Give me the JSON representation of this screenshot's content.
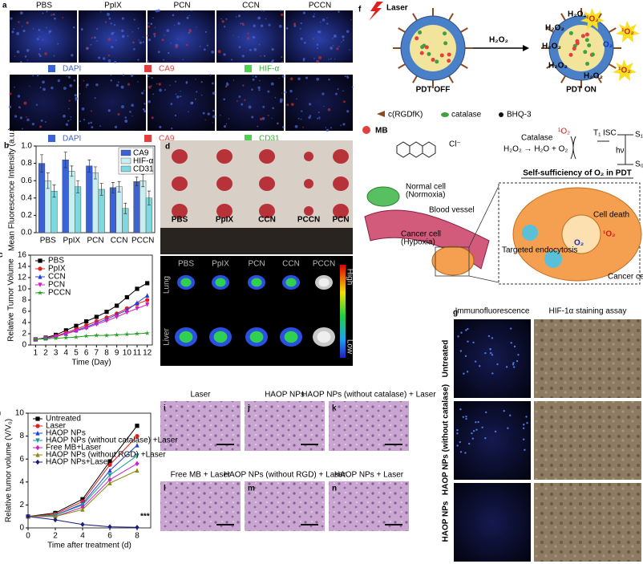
{
  "panels": {
    "a": {
      "label": "a",
      "columns": [
        "PBS",
        "PpIX",
        "PCN",
        "CCN",
        "PCCN"
      ],
      "legend_top": [
        "DAPI",
        "CA9",
        "HIF-α"
      ],
      "legend_bottom": [
        "DAPI",
        "CA9",
        "CD31"
      ]
    },
    "d": {
      "label": "d",
      "samples": [
        "PBS",
        "PpIX",
        "CCN",
        "PCCN",
        "PCN"
      ]
    },
    "e": {
      "label": "e",
      "columns": [
        "PBS",
        "PpIX",
        "PCN",
        "CCN",
        "PCCN"
      ],
      "rows": [
        "Lung",
        "Liver"
      ],
      "scale_high": "High",
      "scale_low": "Low"
    },
    "f": {
      "label": "f",
      "laser": "Laser",
      "reactant": "H₂O₂",
      "state_off": "PDT OFF",
      "state_on": "PDT ON",
      "singlet_oxygen": "¹O₂",
      "oxygen": "O₂",
      "legend": [
        "c(RGDfK)",
        "catalase",
        "BHQ-3"
      ],
      "dye": "MB",
      "counter_ion": "Cl⁻",
      "enzyme": "Catalase",
      "reaction": "H₂O₂ → H₂O + O₂",
      "t1": "T₁",
      "isc": "ISC",
      "s1": "S₁",
      "s0": "S₀",
      "hv": "hν",
      "caption": "Self-sufficiency of O₂ in PDT",
      "normal_cell": "Normal cell",
      "normoxia": "(Normoxia)",
      "blood_vessel": "Blood vessel",
      "cancer_cell_hypoxia": "Cancer cell",
      "hypoxia": "(Hypoxia)",
      "cell_death": "Cell death",
      "endocytosis": "Targeted endocytosis",
      "cancer_cell": "Cancer cell"
    },
    "g": {
      "label": "g",
      "columns": [
        "Immunofluorescence",
        "HIF-1α staining assay"
      ],
      "rows": [
        "Untreated",
        "HAOP NPs (without catalase)",
        "HAOP NPs"
      ]
    },
    "histology": [
      {
        "label": "i",
        "caption": "Laser"
      },
      {
        "label": "j",
        "caption": "HAOP NPs"
      },
      {
        "label": "k",
        "caption": "HAOP NPs (without catalase) + Laser"
      },
      {
        "label": "l",
        "caption": "Free MB + Laser"
      },
      {
        "label": "m",
        "caption": "HAOP NPs (without RGD) + Laser"
      },
      {
        "label": "n",
        "caption": "HAOP NPs + Laser"
      }
    ]
  },
  "chart_data": [
    {
      "type": "bar",
      "label": "b",
      "ylabel": "Mean Fluorescence Intensity (a.u.)",
      "categories": [
        "PBS",
        "PpIX",
        "PCN",
        "CCN",
        "PCCN"
      ],
      "series": [
        {
          "name": "CA9",
          "color": "#3b63d6",
          "values": [
            0.8,
            0.84,
            0.77,
            0.52,
            0.59
          ],
          "errors": [
            0.1,
            0.09,
            0.07,
            0.06,
            0.05
          ]
        },
        {
          "name": "HIF-α",
          "color": "#c8eef0",
          "values": [
            0.6,
            0.71,
            0.69,
            0.53,
            0.6
          ],
          "errors": [
            0.09,
            0.06,
            0.07,
            0.06,
            0.07
          ]
        },
        {
          "name": "CD31",
          "color": "#7fd8de",
          "values": [
            0.48,
            0.53,
            0.5,
            0.28,
            0.4
          ],
          "errors": [
            0.07,
            0.07,
            0.07,
            0.06,
            0.08
          ]
        }
      ],
      "ylim": [
        0,
        1.0
      ],
      "yticks": [
        {
          "value": 0,
          "label": "0.0"
        },
        0.2,
        0.4,
        0.6,
        0.8,
        {
          "value": 1,
          "label": "1.0"
        }
      ],
      "legend": "upper right"
    },
    {
      "type": "line",
      "label": "c",
      "xlabel": "Time (Day)",
      "ylabel": "Relative Tumor Volume",
      "x": [
        1,
        2,
        3,
        4,
        5,
        6,
        7,
        8,
        9,
        10,
        11,
        12
      ],
      "series": [
        {
          "name": "PBS",
          "color": "#000000",
          "marker": "square",
          "values": [
            1,
            1.3,
            1.8,
            2.6,
            3.4,
            4.2,
            5.0,
            5.9,
            7.0,
            8.5,
            10,
            11
          ]
        },
        {
          "name": "PpIX",
          "color": "#e02020",
          "marker": "circle",
          "values": [
            1,
            1.2,
            1.6,
            2.2,
            2.8,
            3.5,
            4.2,
            4.9,
            5.6,
            6.5,
            7.3,
            8
          ]
        },
        {
          "name": "CCN",
          "color": "#2040e0",
          "marker": "triangle",
          "values": [
            1,
            1.2,
            1.5,
            2.0,
            2.6,
            3.2,
            3.9,
            4.6,
            5.4,
            6.2,
            7.5,
            8.8
          ]
        },
        {
          "name": "PCN",
          "color": "#d020c0",
          "marker": "triangle-down",
          "values": [
            1,
            1.2,
            1.5,
            2.0,
            2.5,
            3.0,
            3.7,
            4.3,
            5.0,
            5.8,
            6.5,
            7.2
          ]
        },
        {
          "name": "PCCN",
          "color": "#20a020",
          "marker": "star",
          "values": [
            1,
            1.1,
            1.2,
            1.3,
            1.4,
            1.6,
            1.7,
            1.7,
            1.8,
            1.9,
            2.0,
            2.1
          ]
        }
      ],
      "xlim": [
        0.5,
        12.5
      ],
      "xticks": [
        1,
        2,
        3,
        4,
        5,
        6,
        7,
        8,
        9,
        10,
        11,
        12
      ],
      "ylim": [
        0,
        16
      ],
      "yticks": [
        0,
        2,
        4,
        6,
        8,
        10,
        12,
        14,
        16
      ],
      "legend": "upper left"
    },
    {
      "type": "line",
      "label": "h",
      "xlabel": "Time after treatment (d)",
      "ylabel": "Relative tumor volume (V/V₀)",
      "x": [
        0,
        2,
        4,
        6,
        8
      ],
      "series": [
        {
          "name": "Untreated",
          "color": "#000000",
          "marker": "square",
          "values": [
            1,
            1.3,
            2.5,
            5.8,
            8.9
          ]
        },
        {
          "name": "Laser",
          "color": "#e02020",
          "marker": "circle",
          "values": [
            1,
            1.2,
            2.3,
            5.5,
            8.0
          ]
        },
        {
          "name": "HAOP NPs",
          "color": "#2040e0",
          "marker": "triangle",
          "values": [
            1,
            1.1,
            2.1,
            5.0,
            7.2
          ]
        },
        {
          "name": "HAOP NPs (without catalase) +Laser",
          "color": "#1a9a9a",
          "marker": "triangle-down",
          "values": [
            1,
            1.1,
            2.0,
            4.6,
            6.3
          ]
        },
        {
          "name": "Free MB+Laser",
          "color": "#d020c0",
          "marker": "diamond",
          "values": [
            1,
            1.0,
            1.8,
            4.2,
            5.6
          ]
        },
        {
          "name": "HAOP NPs (without RGD) +Laser",
          "color": "#8a8a10",
          "marker": "triangle",
          "values": [
            1,
            1.0,
            1.6,
            3.9,
            5.0
          ]
        },
        {
          "name": "HAOP NPs+Laser",
          "color": "#1a1a80",
          "marker": "diamond",
          "values": [
            1,
            0.7,
            0.3,
            0.1,
            0.05
          ]
        }
      ],
      "xlim": [
        0,
        9
      ],
      "xticks": [
        0,
        2,
        4,
        6,
        8
      ],
      "ylim": [
        0,
        10
      ],
      "yticks": [
        0,
        2,
        4,
        6,
        8,
        10
      ],
      "legend": "upper left",
      "annotation": "***"
    }
  ]
}
